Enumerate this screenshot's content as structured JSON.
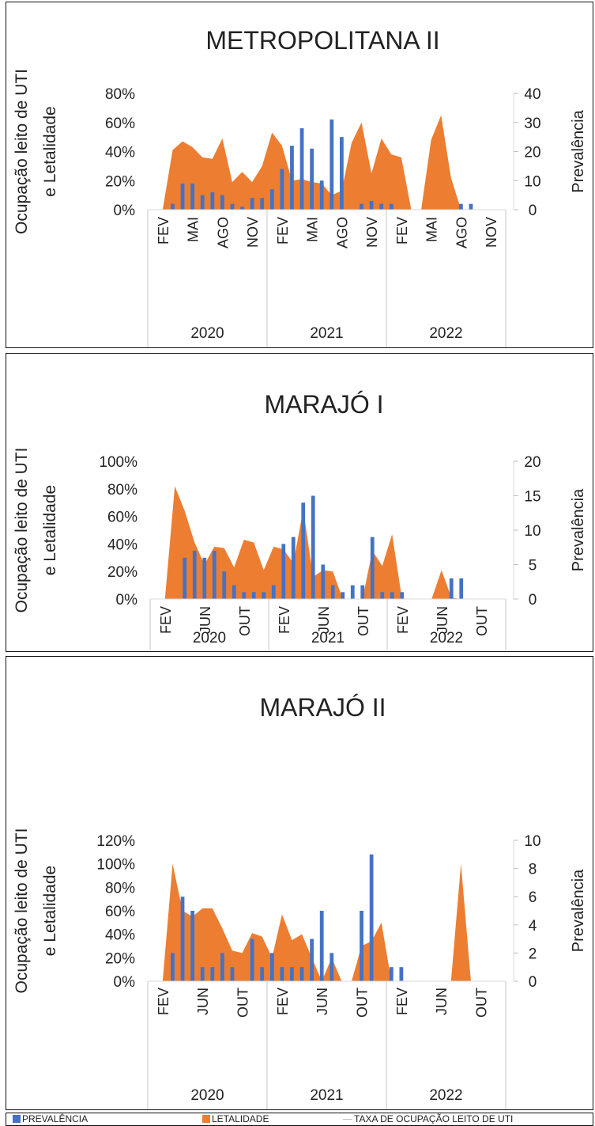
{
  "chart_data": [
    {
      "type": "bar+area",
      "title": "METROPOLITANA II",
      "ylabel": "Ocupação leito de UTI e Letalidade",
      "y2label": "Prevalência",
      "ylim": [
        0,
        0.8
      ],
      "y_ticks": [
        0,
        0.2,
        0.4,
        0.6,
        0.8
      ],
      "y_tick_labels": [
        "0%",
        "20%",
        "40%",
        "60%",
        "80%"
      ],
      "y2lim": [
        0,
        40
      ],
      "y2_ticks": [
        0,
        10,
        20,
        30,
        40
      ],
      "y2_tick_labels": [
        "0",
        "10",
        "20",
        "30",
        "40"
      ],
      "month_labels": [
        "FEV",
        "MAI",
        "AGO",
        "NOV",
        "FEV",
        "MAI",
        "AGO",
        "NOV",
        "FEV",
        "MAI",
        "AGO",
        "NOV"
      ],
      "month_label_index": [
        1,
        4,
        7,
        10,
        13,
        16,
        19,
        22,
        25,
        28,
        31,
        34
      ],
      "years": [
        "2020",
        "2021",
        "2022"
      ],
      "months_per_year": 12,
      "series": [
        {
          "name": "PREVALÊNCIA",
          "type": "bar",
          "axis": "y2",
          "values": [
            0,
            0,
            2,
            9,
            9,
            5,
            6,
            5,
            2,
            1,
            4,
            4,
            7,
            14,
            22,
            28,
            21,
            10,
            31,
            25,
            0,
            2,
            3,
            2,
            2,
            0,
            0,
            0,
            0,
            0,
            0,
            2,
            2,
            0,
            0,
            0
          ]
        },
        {
          "name": "LETALIDADE",
          "type": "area",
          "axis": "y",
          "values": [
            0,
            0,
            0.41,
            0.47,
            0.43,
            0.36,
            0.35,
            0.49,
            0.19,
            0.26,
            0.19,
            0.3,
            0.53,
            0.44,
            0.2,
            0.21,
            0.19,
            0.18,
            0.1,
            0.13,
            0.46,
            0.6,
            0.25,
            0.49,
            0.38,
            0.36,
            0,
            0,
            0.48,
            0.65,
            0.22,
            0,
            0,
            0,
            0,
            0
          ]
        },
        {
          "name": "TAXA DE OCUPAÇÃO LEITO DE UTI",
          "type": "line",
          "axis": "y",
          "values": []
        }
      ]
    },
    {
      "type": "bar+area",
      "title": "MARAJÓ I",
      "ylabel": "Ocupação leito de UTI e Letalidade",
      "y2label": "Prevalência",
      "ylim": [
        0,
        1.0
      ],
      "y_ticks": [
        0,
        0.2,
        0.4,
        0.6,
        0.8,
        1.0
      ],
      "y_tick_labels": [
        "0%",
        "20%",
        "40%",
        "60%",
        "80%",
        "100%"
      ],
      "y2lim": [
        0,
        20
      ],
      "y2_ticks": [
        0,
        5,
        10,
        15,
        20
      ],
      "y2_tick_labels": [
        "0",
        "5",
        "10",
        "15",
        "20"
      ],
      "month_labels": [
        "FEV",
        "JUN",
        "OUT",
        "FEV",
        "JUN",
        "OUT",
        "FEV",
        "JUN",
        "OUT"
      ],
      "month_label_index": [
        1,
        5,
        9,
        13,
        17,
        21,
        25,
        29,
        33
      ],
      "years": [
        "2020",
        "2021",
        "2022"
      ],
      "months_per_year": 12,
      "series": [
        {
          "name": "PREVALÊNCIA",
          "type": "bar",
          "axis": "y2",
          "values": [
            0,
            0,
            0,
            6,
            7,
            6,
            7,
            4,
            2,
            1,
            1,
            1,
            2,
            8,
            9,
            14,
            15,
            5,
            2,
            1,
            2,
            2,
            9,
            1,
            1,
            1,
            0,
            0,
            0,
            0,
            3,
            3,
            0,
            0,
            0,
            0
          ]
        },
        {
          "name": "LETALIDADE",
          "type": "area",
          "axis": "y",
          "values": [
            0,
            0,
            0.82,
            0.64,
            0.41,
            0.25,
            0.38,
            0.37,
            0.23,
            0.43,
            0.41,
            0.21,
            0.38,
            0.36,
            0.26,
            0.65,
            0.16,
            0.21,
            0.2,
            0,
            0,
            0,
            0.35,
            0.24,
            0.47,
            0,
            0,
            0,
            0,
            0.21,
            0.01,
            0,
            0,
            0,
            0,
            0
          ]
        },
        {
          "name": "TAXA DE OCUPAÇÃO LEITO DE UTI",
          "type": "line",
          "axis": "y",
          "values": []
        }
      ]
    },
    {
      "type": "bar+area",
      "title": "MARAJÓ II",
      "ylabel": "Ocupação leito de UTI e Letalidade",
      "y2label": "Prevalência",
      "ylim": [
        0,
        1.2
      ],
      "y_ticks": [
        0,
        0.2,
        0.4,
        0.6,
        0.8,
        1.0,
        1.2
      ],
      "y_tick_labels": [
        "0%",
        "20%",
        "40%",
        "60%",
        "80%",
        "100%",
        "120%"
      ],
      "y2lim": [
        0,
        10
      ],
      "y2_ticks": [
        0,
        2,
        4,
        6,
        8,
        10
      ],
      "y2_tick_labels": [
        "0",
        "2",
        "4",
        "6",
        "8",
        "10"
      ],
      "month_labels": [
        "FEV",
        "JUN",
        "OUT",
        "FEV",
        "JUN",
        "OUT",
        "FEV",
        "JUN",
        "OUT"
      ],
      "month_label_index": [
        1,
        5,
        9,
        13,
        17,
        21,
        25,
        29,
        33
      ],
      "years": [
        "2020",
        "2021",
        "2022"
      ],
      "months_per_year": 12,
      "series": [
        {
          "name": "PREVALÊNCIA",
          "type": "bar",
          "axis": "y2",
          "values": [
            0,
            0,
            2,
            6,
            5,
            1,
            1,
            2,
            1,
            0,
            3,
            1,
            2,
            1,
            1,
            1,
            3,
            5,
            2,
            0,
            0,
            5,
            9,
            0,
            1,
            1,
            0,
            0,
            0,
            0,
            0,
            0,
            0,
            0,
            0,
            0
          ]
        },
        {
          "name": "LETALIDADE",
          "type": "area",
          "axis": "y",
          "values": [
            0,
            0,
            1.0,
            0.6,
            0.55,
            0.62,
            0.62,
            0.45,
            0.26,
            0.24,
            0.41,
            0.38,
            0.2,
            0.57,
            0.35,
            0.4,
            0.2,
            0,
            0.2,
            0,
            0,
            0.3,
            0.34,
            0.5,
            0,
            0,
            0,
            0,
            0,
            0,
            0,
            1.0,
            0,
            0,
            0,
            0
          ]
        },
        {
          "name": "TAXA DE OCUPAÇÃO LEITO DE UTI",
          "type": "line",
          "axis": "y",
          "values": []
        }
      ]
    }
  ],
  "legend": {
    "items": [
      {
        "label": "PREVALÊNCIA",
        "color": "#4472c4",
        "kind": "box"
      },
      {
        "label": "LETALIDADE",
        "color": "#ed7d31",
        "kind": "box"
      },
      {
        "label": "TAXA DE OCUPAÇÃO LEITO DE UTI",
        "color": "#bfbfbf",
        "kind": "line"
      }
    ]
  },
  "colors": {
    "prevalencia": "#4472c4",
    "letalidade": "#ed7d31",
    "ocupacao": "#bfbfbf",
    "axis": "#d9d9d9",
    "text": "#222222"
  }
}
